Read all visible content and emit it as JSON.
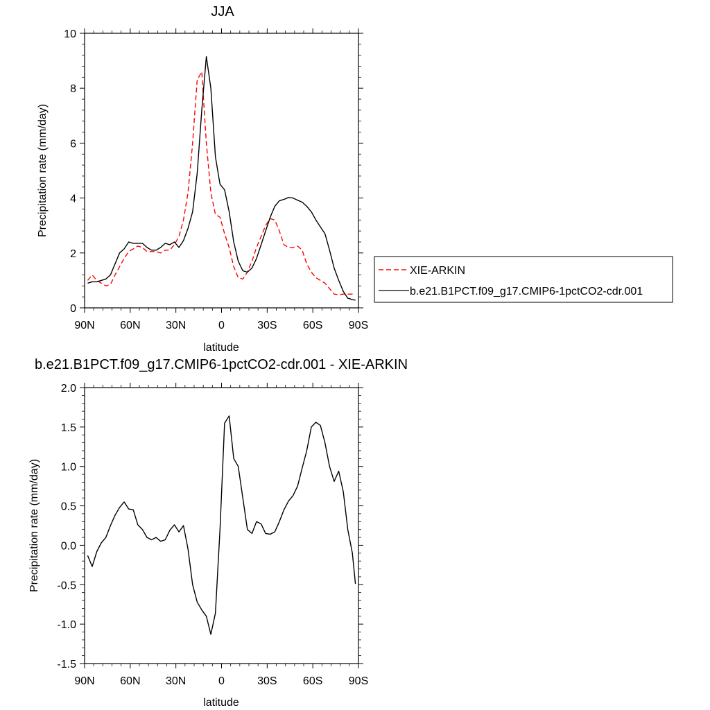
{
  "chart_data": [
    {
      "type": "line",
      "title": "JJA",
      "xlabel": "latitude",
      "ylabel": "Precipitation rate (mm/day)",
      "xlim": [
        90,
        -90
      ],
      "ylim": [
        0,
        10
      ],
      "xticks": [
        90,
        60,
        30,
        0,
        -30,
        -60,
        -90
      ],
      "xtick_labels": [
        "90N",
        "60N",
        "30N",
        "0",
        "30S",
        "60S",
        "90S"
      ],
      "yticks": [
        0,
        2,
        4,
        6,
        8,
        10
      ],
      "ytick_labels": [
        "0",
        "2",
        "4",
        "6",
        "8",
        "10"
      ],
      "legend_position": "right",
      "series": [
        {
          "name": "XIE-ARKIN",
          "color": "#ff0000",
          "dash": "dashed",
          "x": [
            88,
            85,
            82,
            79,
            76,
            73,
            70,
            67,
            64,
            61,
            58,
            55,
            52,
            49,
            46,
            43,
            40,
            37,
            34,
            31,
            28,
            25,
            22,
            19,
            16,
            13,
            10,
            7,
            4,
            1,
            -2,
            -5,
            -8,
            -11,
            -14,
            -17,
            -20,
            -23,
            -26,
            -29,
            -32,
            -35,
            -38,
            -41,
            -44,
            -47,
            -50,
            -53,
            -56,
            -59,
            -62,
            -65,
            -68,
            -71,
            -74,
            -77,
            -80,
            -83,
            -86,
            -88
          ],
          "y": [
            1.0,
            1.2,
            1.0,
            0.9,
            0.8,
            0.85,
            1.2,
            1.5,
            1.8,
            2.05,
            2.15,
            2.25,
            2.2,
            2.05,
            2.05,
            2.05,
            2.0,
            2.1,
            2.1,
            2.3,
            2.6,
            3.2,
            4.2,
            6.0,
            8.3,
            8.6,
            6.0,
            4.2,
            3.4,
            3.3,
            2.7,
            2.2,
            1.5,
            1.1,
            1.05,
            1.3,
            1.7,
            2.2,
            2.6,
            3.0,
            3.25,
            3.2,
            2.8,
            2.3,
            2.2,
            2.2,
            2.25,
            2.1,
            1.6,
            1.3,
            1.1,
            1.0,
            0.9,
            0.7,
            0.5,
            0.48,
            0.5,
            0.5,
            0.5,
            0.5
          ]
        },
        {
          "name": "b.e21.B1PCT.f09_g17.CMIP6-1pctCO2-cdr.001",
          "color": "#000000",
          "dash": "solid",
          "x": [
            88,
            85,
            82,
            79,
            76,
            73,
            70,
            67,
            64,
            61,
            58,
            55,
            52,
            49,
            46,
            43,
            40,
            37,
            34,
            31,
            28,
            25,
            22,
            19,
            16,
            13,
            10,
            7,
            4,
            1,
            -2,
            -5,
            -8,
            -11,
            -14,
            -17,
            -20,
            -23,
            -26,
            -29,
            -32,
            -35,
            -38,
            -41,
            -44,
            -47,
            -50,
            -53,
            -56,
            -59,
            -62,
            -65,
            -68,
            -71,
            -74,
            -77,
            -80,
            -83,
            -86,
            -88
          ],
          "y": [
            0.9,
            0.95,
            0.95,
            1.0,
            1.05,
            1.2,
            1.6,
            2.0,
            2.15,
            2.4,
            2.35,
            2.35,
            2.35,
            2.2,
            2.1,
            2.1,
            2.2,
            2.35,
            2.3,
            2.4,
            2.2,
            2.45,
            2.9,
            3.5,
            4.9,
            7.2,
            9.15,
            8.0,
            5.5,
            4.5,
            4.3,
            3.5,
            2.4,
            1.7,
            1.35,
            1.3,
            1.45,
            1.8,
            2.3,
            2.8,
            3.3,
            3.7,
            3.9,
            3.95,
            4.02,
            4.0,
            3.92,
            3.85,
            3.7,
            3.5,
            3.2,
            2.95,
            2.7,
            2.1,
            1.45,
            1.0,
            0.6,
            0.35,
            0.3,
            0.28
          ]
        }
      ]
    },
    {
      "type": "line",
      "title": "b.e21.B1PCT.f09_g17.CMIP6-1pctCO2-cdr.001 - XIE-ARKIN",
      "xlabel": "latitude",
      "ylabel": "Precipitation rate (mm/day)",
      "xlim": [
        90,
        -90
      ],
      "ylim": [
        -1.5,
        2.0
      ],
      "xticks": [
        90,
        60,
        30,
        0,
        -30,
        -60,
        -90
      ],
      "xtick_labels": [
        "90N",
        "60N",
        "30N",
        "0",
        "30S",
        "60S",
        "90S"
      ],
      "yticks": [
        -1.5,
        -1.0,
        -0.5,
        0.0,
        0.5,
        1.0,
        1.5,
        2.0
      ],
      "ytick_labels": [
        "-1.5",
        "-1.0",
        "-0.5",
        "0.0",
        "0.5",
        "1.0",
        "1.5",
        "2.0"
      ],
      "series": [
        {
          "color": "#000000",
          "dash": "solid",
          "x": [
            88,
            85,
            82,
            79,
            76,
            73,
            70,
            67,
            64,
            61,
            58,
            55,
            52,
            49,
            46,
            43,
            40,
            37,
            34,
            31,
            28,
            25,
            22,
            19,
            16,
            13,
            10,
            7,
            4,
            1,
            -2,
            -5,
            -8,
            -11,
            -14,
            -17,
            -20,
            -23,
            -26,
            -29,
            -32,
            -35,
            -38,
            -41,
            -44,
            -47,
            -50,
            -53,
            -56,
            -59,
            -62,
            -65,
            -68,
            -71,
            -74,
            -77,
            -80,
            -83,
            -86,
            -88
          ],
          "y": [
            -0.13,
            -0.27,
            -0.08,
            0.03,
            0.1,
            0.25,
            0.38,
            0.48,
            0.55,
            0.46,
            0.45,
            0.26,
            0.2,
            0.1,
            0.07,
            0.1,
            0.05,
            0.07,
            0.19,
            0.26,
            0.17,
            0.25,
            -0.05,
            -0.5,
            -0.72,
            -0.82,
            -0.9,
            -1.13,
            -0.86,
            0.2,
            1.55,
            1.64,
            1.1,
            1.0,
            0.6,
            0.2,
            0.15,
            0.3,
            0.27,
            0.15,
            0.14,
            0.17,
            0.3,
            0.45,
            0.56,
            0.63,
            0.75,
            0.98,
            1.2,
            1.5,
            1.56,
            1.52,
            1.3,
            1.0,
            0.81,
            0.94,
            0.68,
            0.2,
            -0.1,
            -0.49
          ]
        }
      ]
    }
  ]
}
